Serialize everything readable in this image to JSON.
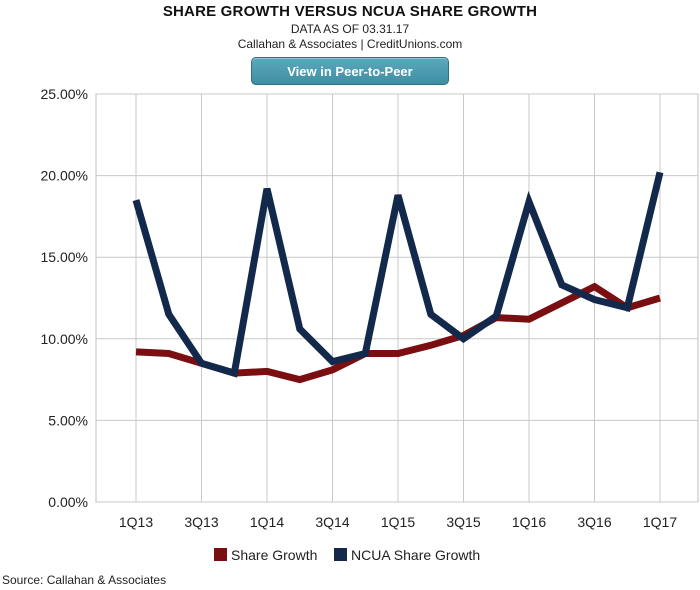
{
  "header": {
    "title": "SHARE GROWTH VERSUS NCUA SHARE GROWTH",
    "subtitle": "DATA AS OF 03.31.17",
    "source_line": "Callahan & Associates | CreditUnions.com"
  },
  "button": {
    "label": "View in Peer-to-Peer"
  },
  "footer": {
    "source": "Source: Callahan & Associates"
  },
  "colors": {
    "share_growth": "#7a0e10",
    "ncua_share_growth": "#13294b",
    "grid": "#c8c8c8"
  },
  "chart_data": {
    "type": "line",
    "title": "SHARE GROWTH VERSUS NCUA SHARE GROWTH",
    "x": [
      "1Q13",
      "2Q13",
      "3Q13",
      "4Q13",
      "1Q14",
      "2Q14",
      "3Q14",
      "4Q14",
      "1Q15",
      "2Q15",
      "3Q15",
      "4Q15",
      "1Q16",
      "2Q16",
      "3Q16",
      "4Q16",
      "1Q17"
    ],
    "xtick_labels": [
      "1Q13",
      "3Q13",
      "1Q14",
      "3Q14",
      "1Q15",
      "3Q15",
      "1Q16",
      "3Q16",
      "1Q17"
    ],
    "ylim": [
      0,
      25
    ],
    "yticks": [
      "0.00%",
      "5.00%",
      "10.00%",
      "15.00%",
      "20.00%",
      "25.00%"
    ],
    "grid": true,
    "legend": "bottom",
    "series": [
      {
        "name": "Share Growth",
        "values": [
          9.2,
          9.1,
          8.5,
          7.9,
          8.0,
          7.5,
          8.1,
          9.1,
          9.1,
          9.6,
          10.2,
          11.3,
          11.2,
          12.2,
          13.2,
          11.9,
          12.5
        ]
      },
      {
        "name": "NCUA Share Growth",
        "values": [
          18.5,
          11.5,
          8.5,
          7.9,
          19.2,
          10.6,
          8.6,
          9.1,
          18.8,
          11.5,
          10.0,
          11.4,
          18.4,
          13.3,
          12.4,
          11.9,
          20.2
        ]
      }
    ]
  }
}
